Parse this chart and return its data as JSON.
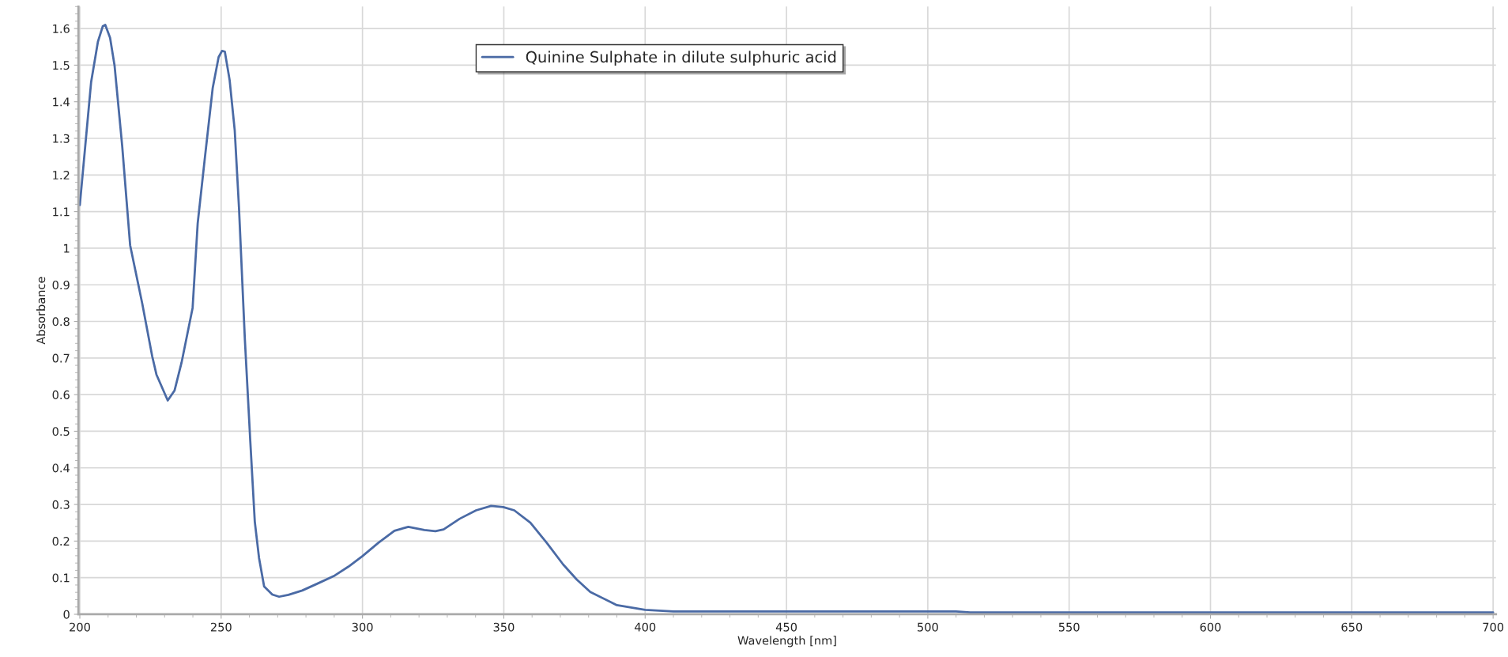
{
  "chart_data": {
    "type": "line",
    "xlabel": "Wavelength [nm]",
    "ylabel": "Absorbance",
    "xlim": [
      199.5,
      701
    ],
    "ylim": [
      0,
      1.66
    ],
    "xticks": [
      200,
      250,
      300,
      350,
      400,
      450,
      500,
      550,
      600,
      650,
      700
    ],
    "yticks": [
      0,
      0.1,
      0.2,
      0.3,
      0.4,
      0.5,
      0.6,
      0.7,
      0.8,
      0.9,
      1,
      1.1,
      1.2,
      1.3,
      1.4,
      1.5,
      1.6
    ],
    "grid": true,
    "legend": "top",
    "marker": "none",
    "line_style": "solid",
    "series": [
      {
        "name": "Quinine Sulphate in dilute sulphuric acid",
        "color": "#4a6aa5",
        "x": [
          200,
          204,
          206.4,
          208.1,
          209,
          210.7,
          212.3,
          215,
          217.8,
          222.1,
          225.6,
          227.1,
          231.1,
          233.5,
          236,
          239.9,
          241.7,
          244.2,
          247,
          249.1,
          250.3,
          251.3,
          253,
          254.8,
          256.3,
          258.4,
          260.3,
          261.9,
          263.4,
          265.2,
          268.1,
          270.5,
          273.8,
          278.7,
          284.4,
          290.2,
          295,
          300,
          305.6,
          311.3,
          316.2,
          321.9,
          325.8,
          328.7,
          334.4,
          340.2,
          345.5,
          349.8,
          353.7,
          359.4,
          365.2,
          371,
          375.8,
          380.6,
          390,
          400,
          410,
          450,
          510,
          515,
          600,
          700
        ],
        "values": [
          1.118,
          1.454,
          1.564,
          1.606,
          1.61,
          1.575,
          1.498,
          1.278,
          1.008,
          0.848,
          0.705,
          0.655,
          0.584,
          0.611,
          0.688,
          0.837,
          1.068,
          1.244,
          1.437,
          1.522,
          1.539,
          1.537,
          1.459,
          1.322,
          1.112,
          0.749,
          0.474,
          0.253,
          0.154,
          0.076,
          0.054,
          0.048,
          0.053,
          0.065,
          0.085,
          0.106,
          0.13,
          0.159,
          0.195,
          0.228,
          0.239,
          0.23,
          0.227,
          0.232,
          0.261,
          0.284,
          0.296,
          0.293,
          0.284,
          0.25,
          0.195,
          0.136,
          0.095,
          0.061,
          0.025,
          0.012,
          0.008,
          0.008,
          0.008,
          0.005,
          0.005,
          0.005
        ]
      }
    ]
  }
}
